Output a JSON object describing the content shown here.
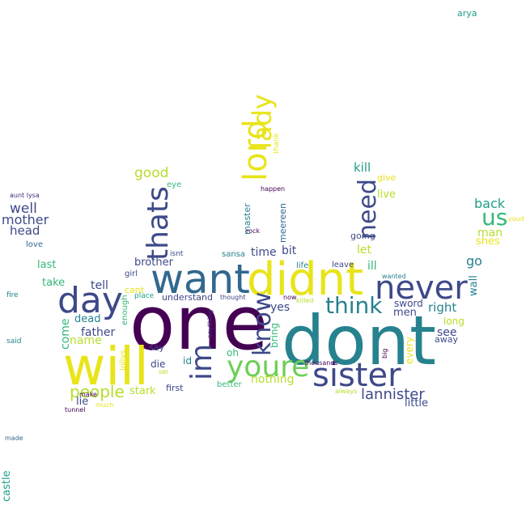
{
  "colors": {
    "background": "#ffffff",
    "palette": [
      "#440154",
      "#482878",
      "#3e4989",
      "#31688e",
      "#26828e",
      "#1f9e89",
      "#35b779",
      "#6ece58",
      "#b5de2b",
      "#fde725"
    ]
  },
  "words": [
    {
      "text": "dont",
      "color": "#26828e"
    },
    {
      "text": "one",
      "color": "#440154"
    },
    {
      "text": "will",
      "color": "#e8e419"
    },
    {
      "text": "didnt",
      "color": "#e8e419"
    },
    {
      "text": "want",
      "color": "#31688e"
    },
    {
      "text": "sister",
      "color": "#3e4989"
    },
    {
      "text": "day",
      "color": "#3e4989"
    },
    {
      "text": "never",
      "color": "#3e4989"
    },
    {
      "text": "lord",
      "color": "#e8e419"
    },
    {
      "text": "lady",
      "color": "#e8e419"
    },
    {
      "text": "im",
      "color": "#3e4989"
    },
    {
      "text": "youre",
      "color": "#6ece58"
    },
    {
      "text": "thats",
      "color": "#3e4989"
    },
    {
      "text": "think",
      "color": "#26828e"
    },
    {
      "text": "know",
      "color": "#3e4989"
    },
    {
      "text": "need",
      "color": "#3e4989"
    },
    {
      "text": "us",
      "color": "#35b779"
    },
    {
      "text": "people",
      "color": "#b5de2b"
    },
    {
      "text": "lannister",
      "color": "#3e4989"
    },
    {
      "text": "good",
      "color": "#b5de2b"
    },
    {
      "text": "well",
      "color": "#3e4989"
    },
    {
      "text": "mother",
      "color": "#3e4989"
    },
    {
      "text": "head",
      "color": "#3e4989"
    },
    {
      "text": "back",
      "color": "#1f9e89"
    },
    {
      "text": "man",
      "color": "#b5de2b"
    },
    {
      "text": "shes",
      "color": "#e8e419"
    },
    {
      "text": "kill",
      "color": "#1f9e89"
    },
    {
      "text": "give",
      "color": "#e8e419"
    },
    {
      "text": "live",
      "color": "#b5de2b"
    },
    {
      "text": "let",
      "color": "#b5de2b"
    },
    {
      "text": "ill",
      "color": "#35b779"
    },
    {
      "text": "going",
      "color": "#3e4989"
    },
    {
      "text": "go",
      "color": "#26828e"
    },
    {
      "text": "wall",
      "color": "#26828e"
    },
    {
      "text": "right",
      "color": "#26828e"
    },
    {
      "text": "men",
      "color": "#3e4989"
    },
    {
      "text": "sword",
      "color": "#3e4989"
    },
    {
      "text": "long",
      "color": "#b5de2b"
    },
    {
      "text": "see",
      "color": "#3e4989"
    },
    {
      "text": "away",
      "color": "#3e4989"
    },
    {
      "text": "little",
      "color": "#3e4989"
    },
    {
      "text": "every",
      "color": "#e8e419"
    },
    {
      "text": "big",
      "color": "#440154"
    },
    {
      "text": "thousands",
      "color": "#440154"
    },
    {
      "text": "always",
      "color": "#b5de2b"
    },
    {
      "text": "tell",
      "color": "#3e4989"
    },
    {
      "text": "father",
      "color": "#3e4989"
    },
    {
      "text": "dead",
      "color": "#26828e"
    },
    {
      "text": "name",
      "color": "#b5de2b"
    },
    {
      "text": "come",
      "color": "#35b779"
    },
    {
      "text": "lie",
      "color": "#3e4989"
    },
    {
      "text": "stark",
      "color": "#b5de2b"
    },
    {
      "text": "first",
      "color": "#3e4989"
    },
    {
      "text": "die",
      "color": "#3e4989"
    },
    {
      "text": "ser",
      "color": "#b5de2b"
    },
    {
      "text": "id",
      "color": "#26828e"
    },
    {
      "text": "oh",
      "color": "#35b779"
    },
    {
      "text": "better",
      "color": "#35b779"
    },
    {
      "text": "nothing",
      "color": "#b5de2b"
    },
    {
      "text": "yes",
      "color": "#3e4989"
    },
    {
      "text": "bring",
      "color": "#35b779"
    },
    {
      "text": "time",
      "color": "#3e4989"
    },
    {
      "text": "bit",
      "color": "#3e4989"
    },
    {
      "text": "sansa",
      "color": "#26828e"
    },
    {
      "text": "meereen",
      "color": "#31688e"
    },
    {
      "text": "master",
      "color": "#26828e"
    },
    {
      "text": "rock",
      "color": "#440154"
    },
    {
      "text": "happen",
      "color": "#440154"
    },
    {
      "text": "thank",
      "color": "#e8e419"
    },
    {
      "text": "brother",
      "color": "#3e4989"
    },
    {
      "text": "girl",
      "color": "#3e4989"
    },
    {
      "text": "cant",
      "color": "#e8e419"
    },
    {
      "text": "enough",
      "color": "#35b779"
    },
    {
      "text": "place",
      "color": "#1f9e89"
    },
    {
      "text": "understand",
      "color": "#3e4989"
    },
    {
      "text": "say",
      "color": "#3e4989"
    },
    {
      "text": "lollys",
      "color": "#e8e419"
    },
    {
      "text": "isnt",
      "color": "#3e4989"
    },
    {
      "text": "thought",
      "color": "#3e4989"
    },
    {
      "text": "anything",
      "color": "#482878"
    },
    {
      "text": "now",
      "color": "#440154"
    },
    {
      "text": "killed",
      "color": "#b5de2b"
    },
    {
      "text": "life",
      "color": "#26828e"
    },
    {
      "text": "leave",
      "color": "#3e4989"
    },
    {
      "text": "wanted",
      "color": "#26828e"
    },
    {
      "text": "eye",
      "color": "#35b779"
    },
    {
      "text": "aunt lysa",
      "color": "#482878"
    },
    {
      "text": "love",
      "color": "#31688e"
    },
    {
      "text": "last",
      "color": "#35b779"
    },
    {
      "text": "take",
      "color": "#35b779"
    },
    {
      "text": "fire",
      "color": "#26828e"
    },
    {
      "text": "said",
      "color": "#26828e"
    },
    {
      "text": "make",
      "color": "#440154"
    },
    {
      "text": "much",
      "color": "#e8e419"
    },
    {
      "text": "tunnel",
      "color": "#440154"
    },
    {
      "text": "made",
      "color": "#31688e"
    },
    {
      "text": "castle",
      "color": "#1f9e89"
    },
    {
      "text": "arya",
      "color": "#1f9e89"
    },
    {
      "text": "youd",
      "color": "#e8e419"
    }
  ]
}
